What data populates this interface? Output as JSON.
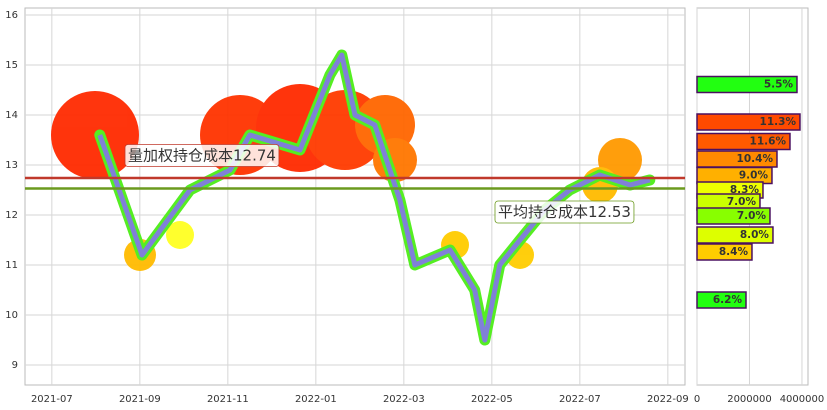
{
  "chart_data": [
    {
      "type": "line",
      "x": [
        1.09,
        2.05,
        3.14,
        4.05,
        4.5,
        5.64,
        6.32,
        6.59,
        6.89,
        7.34,
        7.91,
        8.25,
        9.05,
        9.61,
        9.84,
        10.18,
        10.64,
        11.2,
        11.77,
        12.45,
        13.14,
        13.59
      ],
      "series": [
        {
          "color": "#8080d8",
          "values": [
            13.6,
            11.2,
            12.5,
            12.9,
            13.6,
            13.3,
            14.8,
            15.2,
            14.0,
            13.8,
            12.3,
            11.0,
            11.3,
            10.5,
            9.5,
            11.0,
            11.5,
            12.1,
            12.5,
            12.8,
            12.6,
            12.7
          ]
        }
      ],
      "xlim": [
        -0.61,
        14.39
      ],
      "xticks": [
        {
          "value": 0,
          "label": "2021-07"
        },
        {
          "value": 2,
          "label": "2021-09"
        },
        {
          "value": 4,
          "label": "2021-11"
        },
        {
          "value": 6,
          "label": "2022-01"
        },
        {
          "value": 8,
          "label": "2022-03"
        },
        {
          "value": 10,
          "label": "2022-05"
        },
        {
          "value": 12,
          "label": "2022-07"
        },
        {
          "value": 14,
          "label": "2022-09"
        }
      ],
      "ylim": [
        8.6,
        16.14
      ],
      "yticks": [
        9,
        10,
        11,
        12,
        13,
        14,
        15,
        16
      ],
      "grid": true,
      "hlines": [
        {
          "value": 12.74,
          "label": "量加权持仓成本12.74",
          "color": "#c0392b"
        },
        {
          "value": 12.53,
          "label": "平均持仓成本12.53",
          "color": "#6b9a1e"
        }
      ]
    },
    {
      "type": "barh",
      "y": [
        14.61,
        13.86,
        13.47,
        13.12,
        12.79,
        12.5,
        12.26,
        11.98,
        11.6,
        11.26,
        10.3
      ],
      "values": [
        3810000,
        3924000,
        3543000,
        3048000,
        2857000,
        2514000,
        2400000,
        2781000,
        2895000,
        2095000,
        1867000
      ],
      "labels": [
        "5.5%",
        "11.3%",
        "11.6%",
        "10.4%",
        "9.0%",
        "8.3%",
        "7.0%",
        "7.0%",
        "8.0%",
        "8.4%",
        "6.2%"
      ],
      "colors": [
        "#22ff11",
        "#ff4a00",
        "#ff5a00",
        "#ff8a00",
        "#ffb000",
        "#eeff00",
        "#ccff00",
        "#88ff00",
        "#ddff00",
        "#ffcc00",
        "#22ff11"
      ],
      "xlim": [
        0,
        4230000
      ],
      "xticks": [
        0,
        2000000,
        4000000
      ],
      "ylim": [
        8.6,
        16.14
      ],
      "grid": true
    }
  ]
}
